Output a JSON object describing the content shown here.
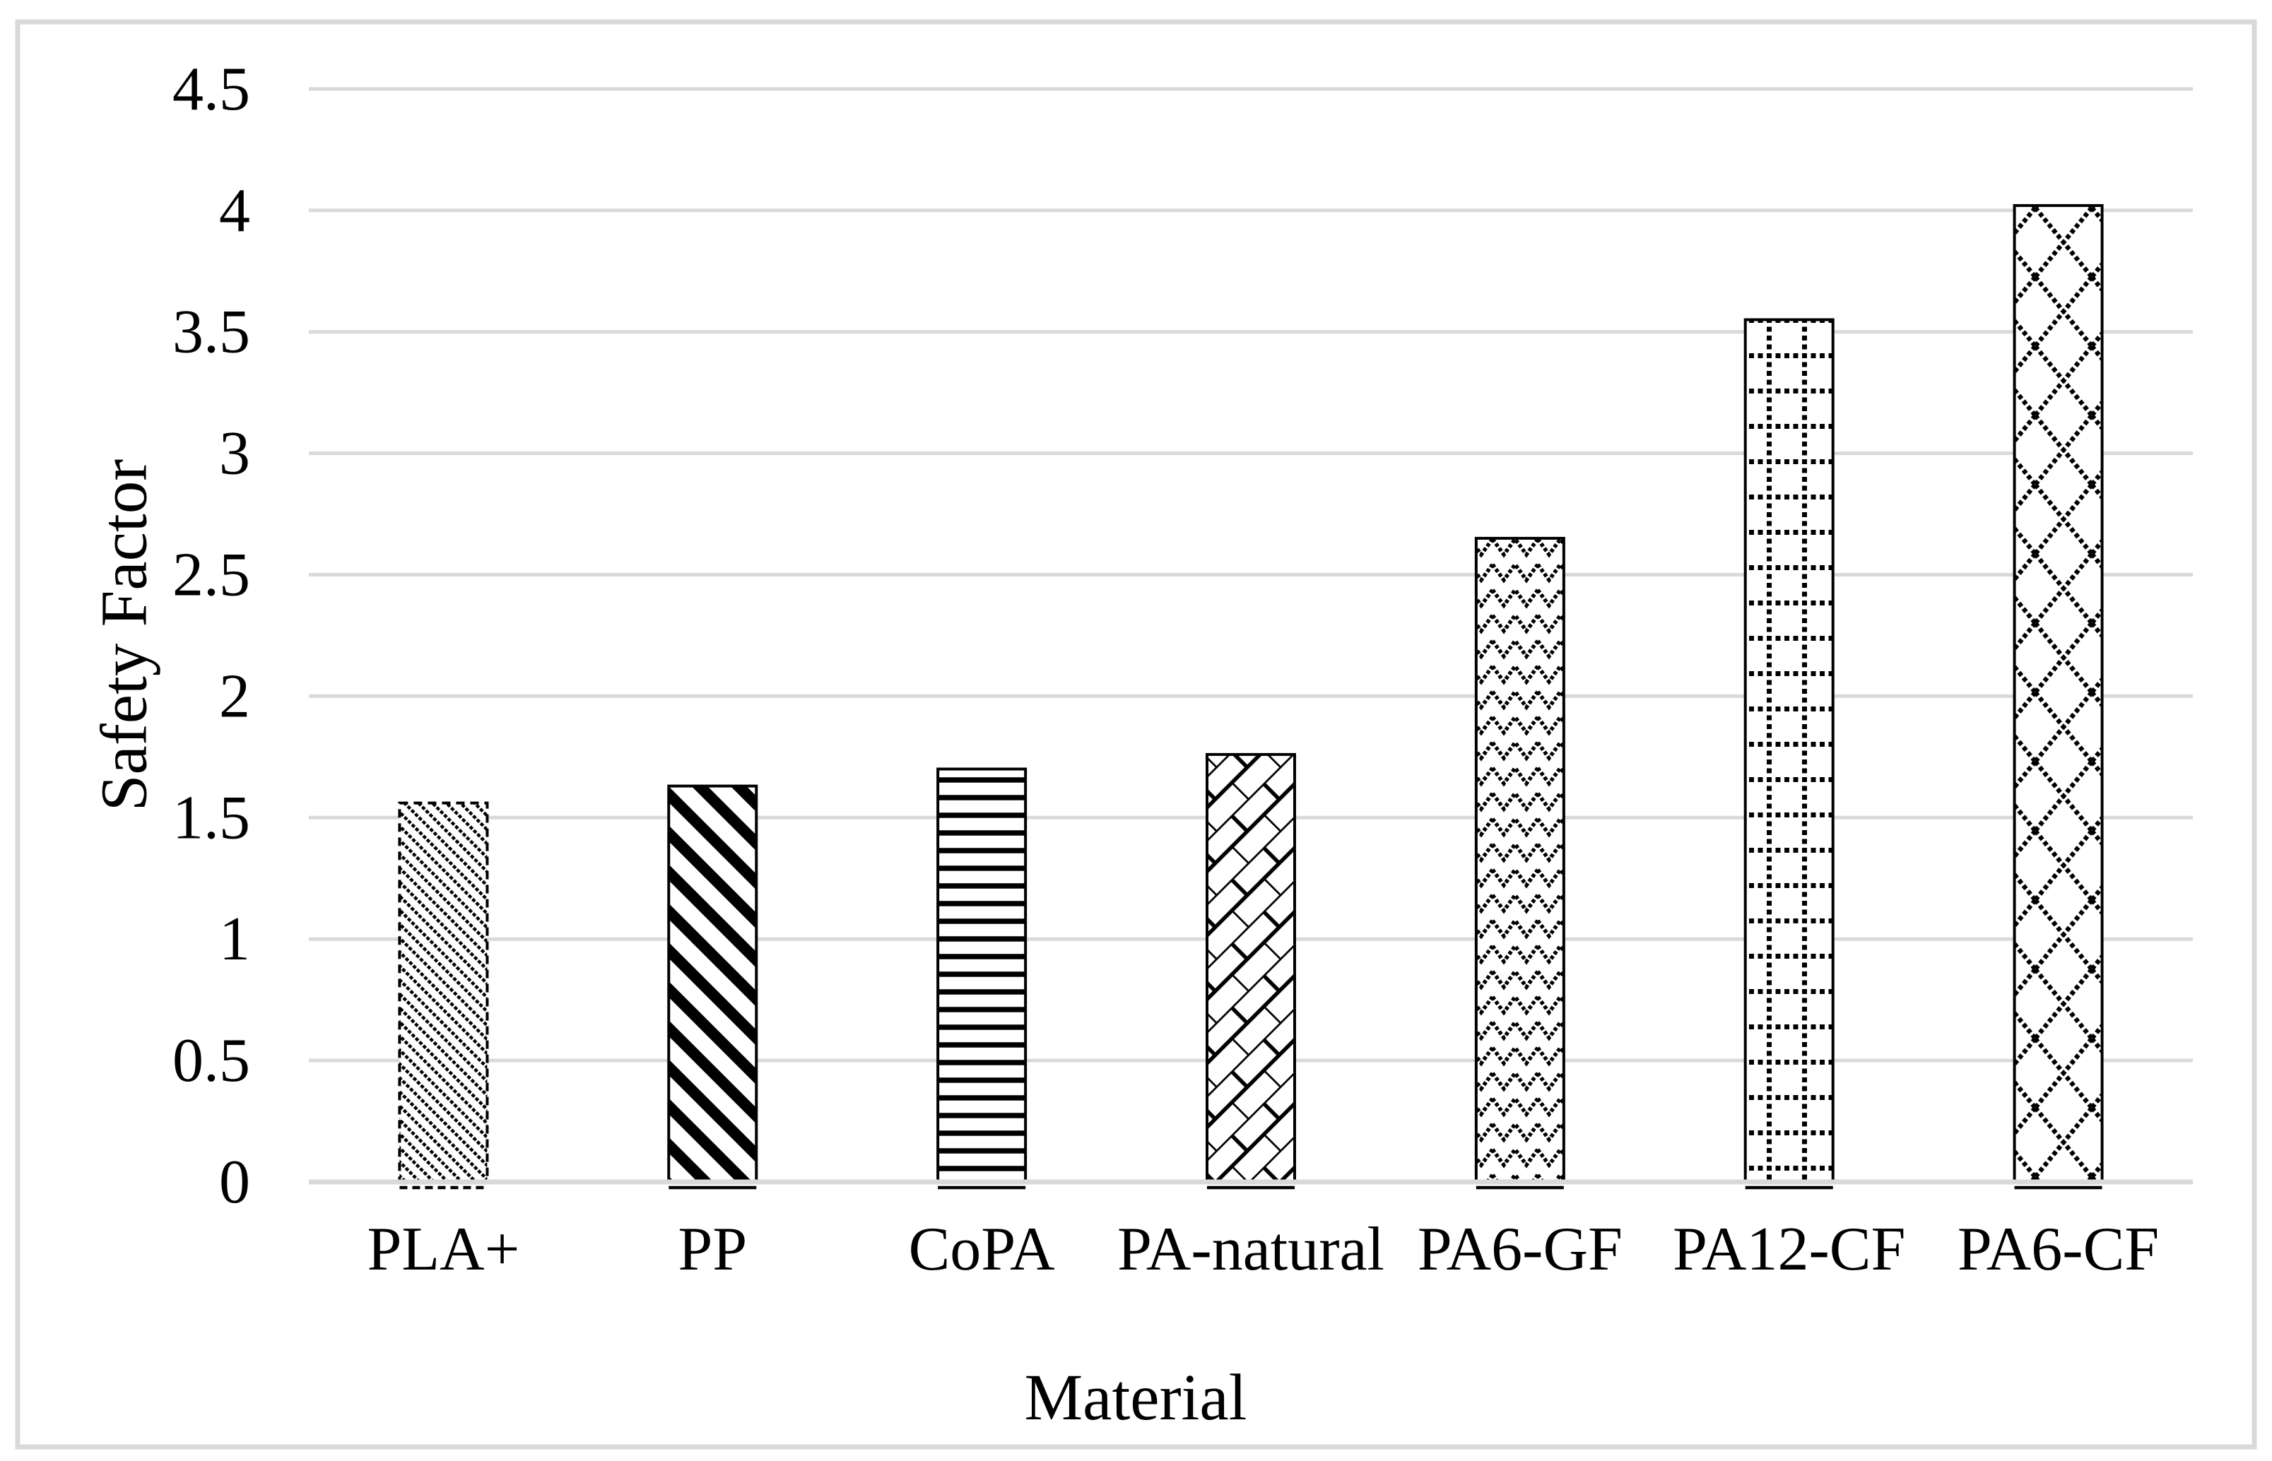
{
  "chart_data": {
    "type": "bar",
    "title": "",
    "xlabel": "Material",
    "ylabel": "Safety Factor",
    "categories": [
      "PLA+",
      "PP",
      "CoPA",
      "PA-natural",
      "PA6-GF",
      "PA12-CF",
      "PA6-CF"
    ],
    "values": [
      1.56,
      1.63,
      1.7,
      1.76,
      2.65,
      3.55,
      4.02
    ],
    "series_fill": "black-and-white pattern fills on white",
    "bar_patterns": [
      "light-downward-diagonal-dashed",
      "wide-downward-diagonal",
      "dark-horizontal-lines",
      "diagonal-brick",
      "zigzag-chevron",
      "dotted-grid",
      "large-dashed-diamond"
    ],
    "ylim": [
      0,
      4.5
    ],
    "ytick_step": 0.5,
    "ytick_labels": [
      "0",
      "0.5",
      "1",
      "1.5",
      "2",
      "2.5",
      "3",
      "3.5",
      "4",
      "4.5"
    ],
    "grid": "horizontal-major-gridlines",
    "legend": "none",
    "colors": {
      "bar_foreground": "#000000",
      "bar_background": "#ffffff",
      "gridline": "#d9d9d9",
      "axis_line": "#d9d9d9",
      "frame_border": "#d9d9d9",
      "text": "#000000",
      "page_background": "#ffffff"
    }
  }
}
